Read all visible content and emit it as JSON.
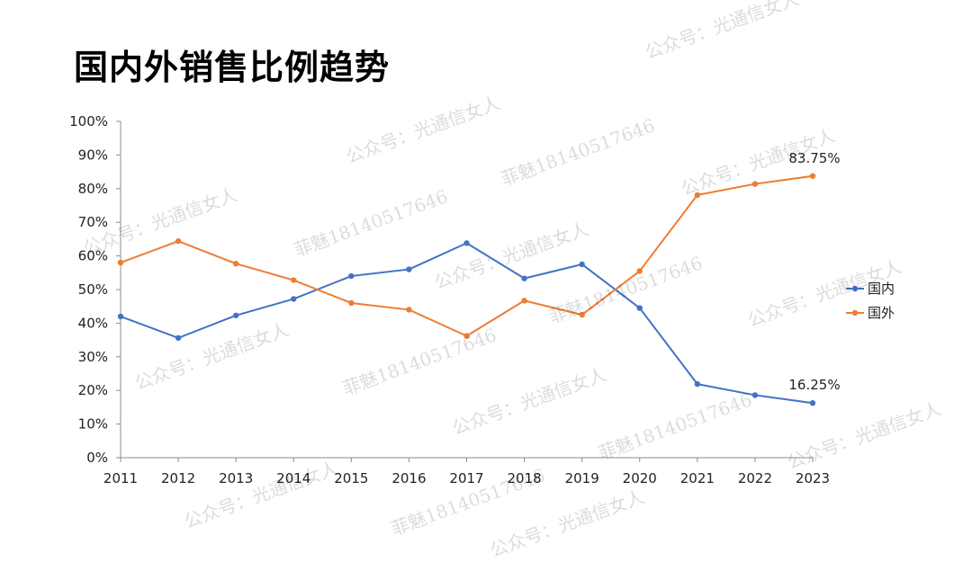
{
  "page": {
    "title": "国内外销售比例趋势",
    "watermarks": [
      "公众号：光通信女人",
      "菲魅18140517646"
    ]
  },
  "chart_data": {
    "type": "line",
    "title": "国内外销售比例趋势",
    "x": [
      "2011",
      "2012",
      "2013",
      "2014",
      "2015",
      "2016",
      "2017",
      "2018",
      "2019",
      "2020",
      "2021",
      "2022",
      "2023"
    ],
    "yticks": [
      "0%",
      "10%",
      "20%",
      "30%",
      "40%",
      "50%",
      "60%",
      "70%",
      "80%",
      "90%",
      "100%"
    ],
    "ylim": [
      0,
      100
    ],
    "grid": false,
    "legend_position": "right",
    "series": [
      {
        "name": "国内",
        "color": "#4472C4",
        "values": [
          42,
          35.6,
          42.3,
          47.2,
          54,
          56,
          63.8,
          53.3,
          57.5,
          44.5,
          21.9,
          18.6,
          16.25
        ],
        "end_label": "16.25%"
      },
      {
        "name": "国外",
        "color": "#ED7D31",
        "values": [
          58,
          64.4,
          57.7,
          52.8,
          46,
          44,
          36.2,
          46.7,
          42.5,
          55.5,
          78.1,
          81.4,
          83.75
        ],
        "end_label": "83.75%"
      }
    ]
  }
}
